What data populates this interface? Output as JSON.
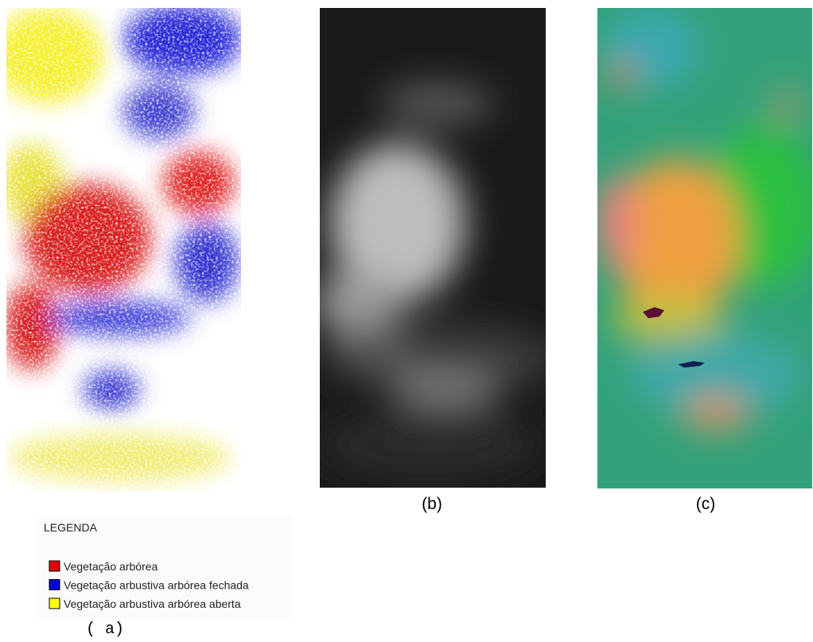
{
  "panels": {
    "a": {
      "label": "( a)"
    },
    "b": {
      "label": "(b)"
    },
    "c": {
      "label": "(c)"
    }
  },
  "legend": {
    "title": "LEGENDA",
    "items": [
      {
        "label": "Vegetação arbórea",
        "color": "#e00000"
      },
      {
        "label": "Vegetação arbustiva arbórea fechada",
        "color": "#0000e0"
      },
      {
        "label": "Vegetação arbustiva arbórea aberta",
        "color": "#ffff00"
      }
    ]
  }
}
